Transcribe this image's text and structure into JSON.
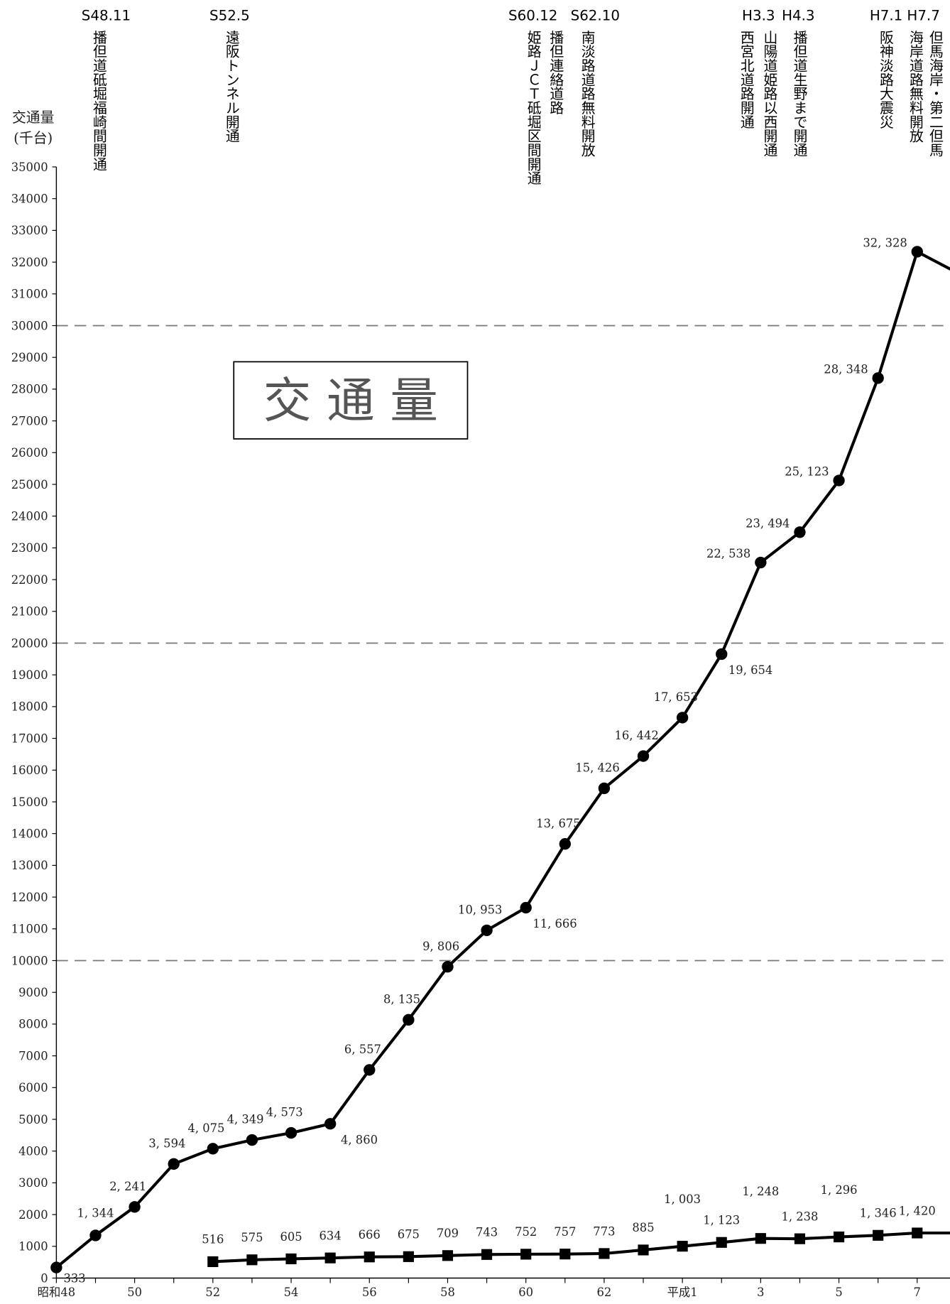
{
  "chart_data": {
    "type": "line",
    "y_label": [
      "交通量",
      "(千台)"
    ],
    "inset_title": "交 通 量",
    "categories": [
      "昭和48",
      null,
      "50",
      null,
      "52",
      null,
      "54",
      null,
      "56",
      null,
      "58",
      null,
      "60",
      null,
      "62",
      null,
      "平成1",
      null,
      "3",
      null,
      "5",
      null,
      "7",
      null
    ],
    "series": [
      {
        "color": "#000000",
        "marker": "circle",
        "values": [
          333,
          1344,
          2241,
          3594,
          4075,
          4349,
          4573,
          4860,
          6557,
          8135,
          9806,
          10953,
          11666,
          13675,
          15426,
          16442,
          17653,
          19654,
          22538,
          23494,
          25123,
          28348,
          32328,
          31680
        ],
        "value_labels": [
          "333",
          "1, 344",
          "2, 241",
          "3, 594",
          "4, 075",
          "4, 349",
          "4, 573",
          "4, 860",
          "6, 557",
          "8, 135",
          "9, 806",
          "10, 953",
          "11, 666",
          "13, 675",
          "15, 426",
          "16, 442",
          "17, 653",
          "19, 654",
          "22, 538",
          "23, 494",
          "25, 123",
          "28, 348",
          "32, 328",
          null
        ]
      },
      {
        "color": "#000000",
        "marker": "square",
        "values": [
          null,
          null,
          null,
          null,
          516,
          575,
          605,
          634,
          666,
          675,
          709,
          743,
          752,
          757,
          773,
          885,
          1003,
          1123,
          1248,
          1238,
          1296,
          1346,
          1420,
          1420
        ],
        "value_labels": [
          null,
          null,
          null,
          null,
          "516",
          "575",
          "605",
          "634",
          "666",
          "675",
          "709",
          "743",
          "752",
          "757",
          "773",
          "885",
          "1, 003",
          "1, 123",
          "1, 248",
          "1, 238",
          "1, 296",
          "1, 346",
          "1, 420",
          null
        ]
      }
    ],
    "ylim": [
      0,
      35000
    ],
    "yticks": [
      0,
      1000,
      2000,
      3000,
      4000,
      5000,
      6000,
      7000,
      8000,
      9000,
      10000,
      11000,
      12000,
      13000,
      14000,
      15000,
      16000,
      17000,
      18000,
      19000,
      20000,
      21000,
      22000,
      23000,
      24000,
      25000,
      26000,
      27000,
      28000,
      29000,
      30000,
      31000,
      32000,
      33000,
      34000,
      35000
    ],
    "grid_lines": [
      10000,
      20000,
      30000
    ],
    "annotations": [
      {
        "date": "S48.11",
        "lines": [
          "播但道砥堀福崎間開通"
        ]
      },
      {
        "date": "S52.5",
        "lines": [
          "遠阪トンネル開通"
        ]
      },
      {
        "date": "S60.12",
        "lines": [
          "播但連絡道路",
          "姫路ＪＣＴ砥堀区間開通"
        ]
      },
      {
        "date": "S62.10",
        "lines": [
          "南淡路道路無料開放"
        ]
      },
      {
        "date": "H3.3",
        "lines": [
          "山陽道姫路以西開通",
          "西宮北道路開通"
        ]
      },
      {
        "date": "H4.3",
        "lines": [
          "播但道生野まで開通"
        ]
      },
      {
        "date": "H7.1",
        "lines": [
          "阪神淡路大震災"
        ]
      },
      {
        "date": "H7.7",
        "lines": [
          "但馬海岸・第二但馬",
          "海岸道路無料開放"
        ]
      }
    ]
  }
}
